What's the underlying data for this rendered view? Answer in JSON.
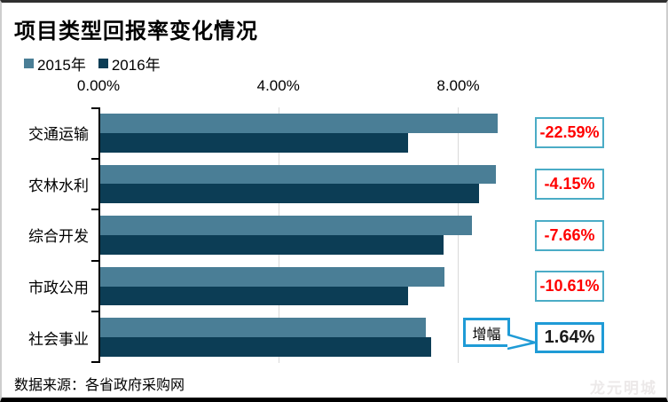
{
  "page": {
    "source": "数据来源：各省政府采购网",
    "watermark": "龙元明城"
  },
  "chart_data": {
    "type": "bar",
    "orientation": "horizontal",
    "title": "项目类型回报率变化情况",
    "categories": [
      "交通运输",
      "农林水利",
      "综合开发",
      "市政公用",
      "社会事业"
    ],
    "series": [
      {
        "name": "2015年",
        "color": "#4a7e96",
        "values": [
          8.84,
          8.8,
          8.26,
          7.65,
          7.24
        ]
      },
      {
        "name": "2016年",
        "color": "#0c3d55",
        "values": [
          6.84,
          8.43,
          7.63,
          6.84,
          7.36
        ]
      }
    ],
    "unit": "%",
    "x_ticks": [
      {
        "label": "0.00%",
        "value": 0
      },
      {
        "label": "4.00%",
        "value": 4
      },
      {
        "label": "8.00%",
        "value": 8
      }
    ],
    "xlim": [
      0,
      12.43
    ],
    "grid": "vertical",
    "legend_position": "top-left",
    "annotations": {
      "callout": "增幅",
      "changes": [
        {
          "label": "-22.59%",
          "emphasis": "negative"
        },
        {
          "label": "-4.15%",
          "emphasis": "negative"
        },
        {
          "label": "-7.66%",
          "emphasis": "negative"
        },
        {
          "label": "-10.61%",
          "emphasis": "negative"
        },
        {
          "label": "1.64%",
          "emphasis": "positive"
        }
      ]
    }
  },
  "colors": {
    "series_2015": "#4a7e96",
    "series_2016": "#0c3d55",
    "negative_label": "#ff0000",
    "positive_label": "#1a1a1a",
    "thin_box_border": "#4bacc6",
    "thick_box_border": "#1f9bd6",
    "gridline": "#d9d9d9",
    "axis": "#000000"
  }
}
